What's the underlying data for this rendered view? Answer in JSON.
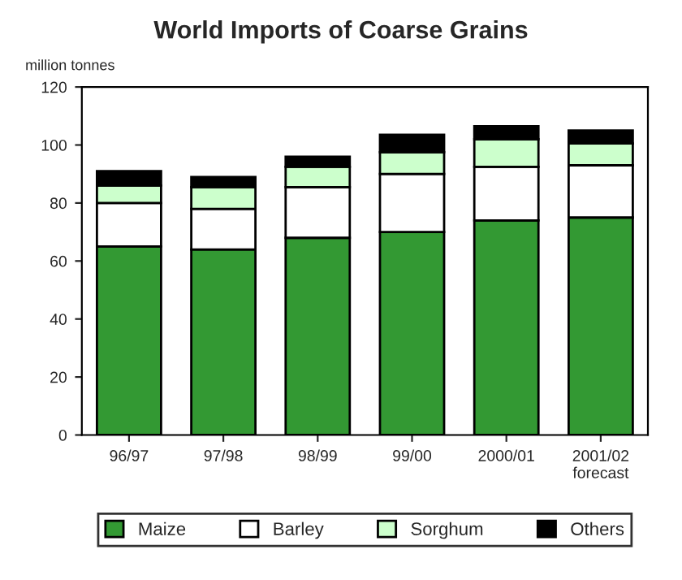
{
  "chart_data": {
    "type": "bar",
    "title": "World Imports of Coarse Grains",
    "ylabel": "million tonnes",
    "categories": [
      "96/97",
      "97/98",
      "98/99",
      "99/00",
      "2000/01",
      "2001/02\nforecast"
    ],
    "stacked": true,
    "series": [
      {
        "name": "Maize",
        "color": "#339933",
        "values": [
          65,
          64,
          68,
          70,
          74,
          75
        ]
      },
      {
        "name": "Barley",
        "color": "#ffffff",
        "values": [
          15,
          14,
          17.5,
          20,
          18.5,
          18
        ]
      },
      {
        "name": "Sorghum",
        "color": "#ccffcc",
        "values": [
          6,
          7.5,
          7,
          7.5,
          9.5,
          7.5
        ]
      },
      {
        "name": "Others",
        "color": "#000000",
        "values": [
          5,
          3.5,
          3.5,
          6,
          4.5,
          4.5
        ]
      }
    ],
    "ylim": [
      0,
      120
    ],
    "yticks": [
      0,
      20,
      40,
      60,
      80,
      100,
      120
    ],
    "grid": false,
    "legend": "bottom"
  }
}
